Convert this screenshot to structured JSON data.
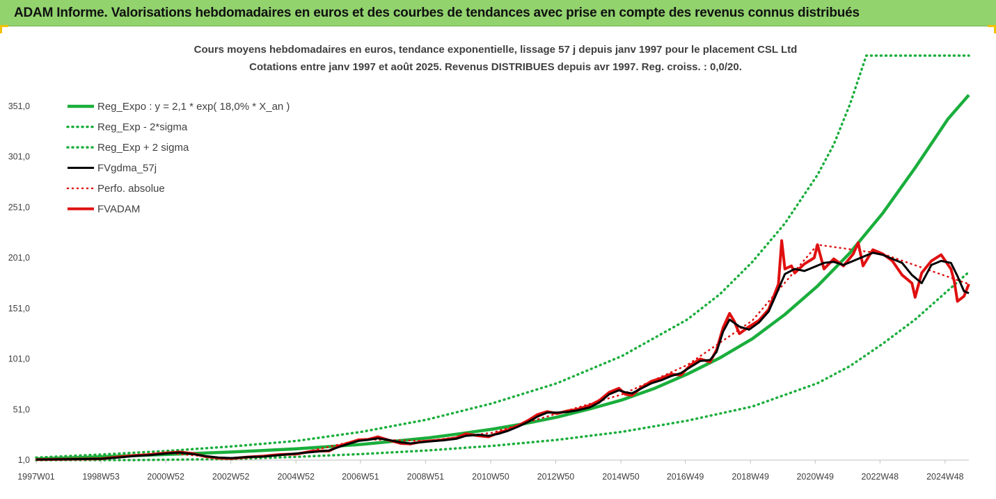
{
  "header": {
    "title": "ADAM Informe. Valorisations hebdomadaires en euros et des courbes de tendances avec prise en compte des revenus connus distribués"
  },
  "colors": {
    "header_bg": "#92d36e",
    "accent_corner": "#f2c200",
    "reg_green": "#1aae3c",
    "fvgdma_black": "#000000",
    "fvadam_red": "#e01010"
  },
  "chart_data": {
    "type": "line",
    "title": "Cours moyens hebdomadaires en euros, tendance exponentielle, lissage 57 j depuis janv 1997 pour le placement CSL Ltd",
    "subtitle": "Cotations entre janv 1997 et août 2025. Revenus DISTRIBUES depuis avr 1997. Reg. croiss. : 0,0/20.",
    "x_unit": "year",
    "xlim": [
      1997.0,
      2025.65
    ],
    "ylim": [
      1.0,
      401.0
    ],
    "y_ticks": [
      1.0,
      51.0,
      101.0,
      151.0,
      201.0,
      251.0,
      301.0,
      351.0
    ],
    "y_tick_labels": [
      "1,0",
      "51,0",
      "101,0",
      "151,0",
      "201,0",
      "251,0",
      "301,0",
      "351,0"
    ],
    "x_ticks": [
      1997.0,
      1998.99,
      2000.98,
      2002.98,
      2004.98,
      2006.96,
      2008.96,
      2010.96,
      2012.96,
      2014.96,
      2016.94,
      2018.94,
      2020.93,
      2022.92,
      2024.92
    ],
    "x_tick_labels": [
      "1997W01",
      "1998W53",
      "2000W52",
      "2002W52",
      "2004W52",
      "2006W51",
      "2008W51",
      "2010W50",
      "2012W50",
      "2014W50",
      "2016W49",
      "2018W49",
      "2020W49",
      "2022W48",
      "2024W48"
    ],
    "grid": false,
    "legend_position": "top-left",
    "legend": [
      {
        "label": "Reg_Expo : y = 2,1 * exp( 18,0% *  X_an )",
        "color": "#1aae3c",
        "style": "solid",
        "width": 4.5
      },
      {
        "label": "Reg_Exp - 2*sigma",
        "color": "#1aae3c",
        "style": "dotted",
        "width": 3.5
      },
      {
        "label": "Reg_Exp + 2 sigma",
        "color": "#1aae3c",
        "style": "dotted",
        "width": 3.5
      },
      {
        "label": "FVgdma_57j",
        "color": "#000000",
        "style": "solid",
        "width": 3
      },
      {
        "label": "Perfo. absolue",
        "color": "#e01010",
        "style": "dotted",
        "width": 2.5
      },
      {
        "label": "FVADAM",
        "color": "#e01010",
        "style": "solid",
        "width": 4
      }
    ],
    "series": [
      {
        "name": "Reg_Expo : y = 2,1 * exp( 18,0% *  X_an )",
        "x": [
          1997.0,
          1999.0,
          2001.0,
          2003.0,
          2005.0,
          2007.0,
          2009.0,
          2010.0,
          2011.0,
          2012.0,
          2013.0,
          2014.0,
          2015.0,
          2016.0,
          2017.0,
          2018.0,
          2019.0,
          2020.0,
          2021.0,
          2022.0,
          2023.0,
          2024.0,
          2025.0,
          2025.65
        ],
        "y": [
          2.1,
          4.2,
          6.6,
          9.0,
          12.1,
          16.5,
          22.8,
          27.0,
          31.5,
          37.0,
          43.5,
          51.5,
          60.5,
          72.0,
          86.0,
          102.0,
          121.0,
          145.0,
          173.0,
          206.0,
          245.0,
          290.0,
          338.0,
          362.0
        ]
      },
      {
        "name": "Reg_Exp - 2*sigma",
        "x": [
          1997.0,
          2000.0,
          2003.0,
          2005.0,
          2007.0,
          2009.0,
          2011.0,
          2013.0,
          2015.0,
          2017.0,
          2019.0,
          2021.0,
          2022.0,
          2023.0,
          2024.0,
          2025.65
        ],
        "y": [
          1.0,
          1.0,
          2.0,
          4.2,
          7.0,
          10.5,
          15.0,
          21.0,
          29.0,
          40.0,
          54.0,
          77.0,
          94.0,
          116.0,
          140.0,
          187.0
        ]
      },
      {
        "name": "Reg_Exp + 2 sigma",
        "x": [
          1997.0,
          1999.0,
          2001.0,
          2003.0,
          2005.0,
          2007.0,
          2009.0,
          2011.0,
          2013.0,
          2015.0,
          2017.0,
          2018.0,
          2019.0,
          2020.0,
          2021.0,
          2021.5,
          2022.0,
          2022.5,
          2023.0,
          2024.0,
          2025.65
        ],
        "y": [
          3.5,
          6.5,
          10.0,
          14.5,
          20.0,
          29.0,
          41.0,
          57.0,
          77.0,
          104.0,
          140.0,
          165.0,
          197.0,
          235.0,
          283.0,
          313.0,
          353.0,
          401.0,
          401.0,
          401.0,
          401.0
        ]
      },
      {
        "name": "FVgdma_57j",
        "x": [
          1997.0,
          1998.0,
          1999.0,
          1999.5,
          2000.0,
          2000.5,
          2001.0,
          2001.4,
          2001.8,
          2002.2,
          2002.6,
          2003.0,
          2003.5,
          2004.0,
          2004.5,
          2005.0,
          2005.5,
          2006.0,
          2006.3,
          2006.6,
          2006.9,
          2007.2,
          2007.5,
          2007.8,
          2008.2,
          2008.5,
          2008.8,
          2009.1,
          2009.5,
          2009.9,
          2010.2,
          2010.6,
          2010.9,
          2011.2,
          2011.5,
          2011.8,
          2012.1,
          2012.4,
          2012.7,
          2013.0,
          2013.3,
          2013.6,
          2014.0,
          2014.3,
          2014.6,
          2014.9,
          2015.1,
          2015.3,
          2015.6,
          2015.9,
          2016.2,
          2016.5,
          2016.8,
          2017.1,
          2017.4,
          2017.7,
          2017.9,
          2018.1,
          2018.3,
          2018.6,
          2018.9,
          2019.2,
          2019.5,
          2019.8,
          2020.0,
          2020.3,
          2020.6,
          2020.9,
          2021.2,
          2021.5,
          2021.8,
          2022.1,
          2022.4,
          2022.7,
          2023.0,
          2023.3,
          2023.6,
          2023.9,
          2024.2,
          2024.5,
          2024.8,
          2025.1,
          2025.3,
          2025.5,
          2025.65
        ],
        "y": [
          1.5,
          1.8,
          2.3,
          3.5,
          5.0,
          6.0,
          7.5,
          8.5,
          7.0,
          5.0,
          3.5,
          3.0,
          4.0,
          4.5,
          6.0,
          7.5,
          9.0,
          10.5,
          14.0,
          17.0,
          20.0,
          21.0,
          22.5,
          21.0,
          18.5,
          17.5,
          18.5,
          19.5,
          20.5,
          22.0,
          25.0,
          26.0,
          25.0,
          27.0,
          30.0,
          34.0,
          38.5,
          44.0,
          48.0,
          48.0,
          48.5,
          50.0,
          53.0,
          58.0,
          66.0,
          70.0,
          68.0,
          67.0,
          72.0,
          77.0,
          80.0,
          84.0,
          87.0,
          93.0,
          99.0,
          100.0,
          108.0,
          128.0,
          140.0,
          133.0,
          130.0,
          137.0,
          148.0,
          170.0,
          185.0,
          190.0,
          188.0,
          192.0,
          196.0,
          197.0,
          194.0,
          198.0,
          202.0,
          206.0,
          204.0,
          200.0,
          196.0,
          184.0,
          176.0,
          194.0,
          198.0,
          196.0,
          183.0,
          168.0,
          166.0
        ]
      },
      {
        "name": "FVADAM",
        "x": [
          1997.0,
          1998.0,
          1999.0,
          1999.5,
          2000.0,
          2000.5,
          2001.0,
          2001.4,
          2001.8,
          2002.2,
          2002.6,
          2003.0,
          2003.5,
          2004.0,
          2004.5,
          2005.0,
          2005.5,
          2006.0,
          2006.3,
          2006.6,
          2006.9,
          2007.2,
          2007.5,
          2007.8,
          2008.2,
          2008.5,
          2008.8,
          2009.1,
          2009.5,
          2009.9,
          2010.2,
          2010.6,
          2010.9,
          2011.2,
          2011.5,
          2011.8,
          2012.1,
          2012.4,
          2012.7,
          2013.0,
          2013.3,
          2013.6,
          2014.0,
          2014.3,
          2014.6,
          2014.9,
          2015.1,
          2015.3,
          2015.6,
          2015.9,
          2016.2,
          2016.5,
          2016.8,
          2017.1,
          2017.4,
          2017.7,
          2017.9,
          2018.1,
          2018.3,
          2018.45,
          2018.6,
          2018.9,
          2019.2,
          2019.5,
          2019.8,
          2019.9,
          2020.0,
          2020.2,
          2020.3,
          2020.6,
          2020.9,
          2021.0,
          2021.2,
          2021.5,
          2021.8,
          2022.1,
          2022.25,
          2022.4,
          2022.7,
          2023.0,
          2023.3,
          2023.6,
          2023.9,
          2024.0,
          2024.2,
          2024.5,
          2024.8,
          2025.1,
          2025.2,
          2025.3,
          2025.5,
          2025.65
        ],
        "y": [
          1.5,
          1.8,
          2.3,
          4.0,
          5.5,
          6.5,
          8.0,
          9.0,
          7.5,
          4.5,
          3.0,
          2.5,
          4.0,
          5.0,
          6.5,
          7.0,
          10.0,
          10.0,
          15.0,
          18.0,
          21.0,
          21.5,
          24.0,
          21.0,
          17.5,
          17.0,
          19.0,
          20.0,
          21.0,
          23.0,
          27.0,
          25.0,
          24.0,
          28.0,
          31.0,
          35.0,
          40.0,
          46.0,
          49.0,
          47.0,
          49.5,
          51.0,
          55.0,
          60.0,
          68.0,
          72.0,
          66.0,
          65.0,
          73.0,
          79.0,
          82.0,
          86.0,
          85.0,
          95.0,
          101.0,
          98.0,
          110.0,
          132.0,
          146.0,
          138.0,
          126.0,
          133.0,
          139.0,
          150.0,
          175.0,
          218.0,
          190.0,
          193.0,
          186.0,
          195.0,
          201.0,
          214.0,
          190.0,
          200.0,
          193.0,
          205.0,
          216.0,
          193.0,
          209.0,
          205.0,
          198.0,
          184.0,
          176.0,
          162.0,
          186.0,
          198.0,
          204.0,
          190.0,
          178.0,
          158.0,
          163.0,
          175.0
        ]
      },
      {
        "name": "Perfo. absolue",
        "x": [
          1997.0,
          1999.0,
          2001.0,
          2003.0,
          2005.0,
          2007.0,
          2009.0,
          2011.0,
          2013.0,
          2015.0,
          2017.0,
          2019.0,
          2021.0,
          2023.0,
          2025.65
        ],
        "y": [
          1.5,
          2.3,
          8.0,
          2.5,
          7.0,
          21.5,
          20.0,
          28.0,
          47.0,
          66.0,
          95.0,
          139.0,
          214.0,
          205.0,
          175.0
        ]
      }
    ]
  }
}
